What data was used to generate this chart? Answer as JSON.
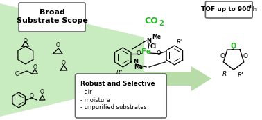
{
  "bg_color": "#ffffff",
  "funnel_color": "#c8ebc0",
  "arrow_color": "#b8dca8",
  "box_edge_color": "#666666",
  "green_text": "#22bb22",
  "black": "#000000",
  "box1_text_line1": "Broad",
  "box1_text_line2": "Substrate Scope",
  "box2_text": "TOF up to 900 h",
  "box2_sup": "-1",
  "box3_title": "Robust and Selective",
  "box3_items": [
    "- air",
    "- moisture",
    "- unpurified substrates"
  ],
  "co2_text": "CO",
  "co2_sub": "2",
  "figsize": [
    3.78,
    1.74
  ],
  "dpi": 100
}
